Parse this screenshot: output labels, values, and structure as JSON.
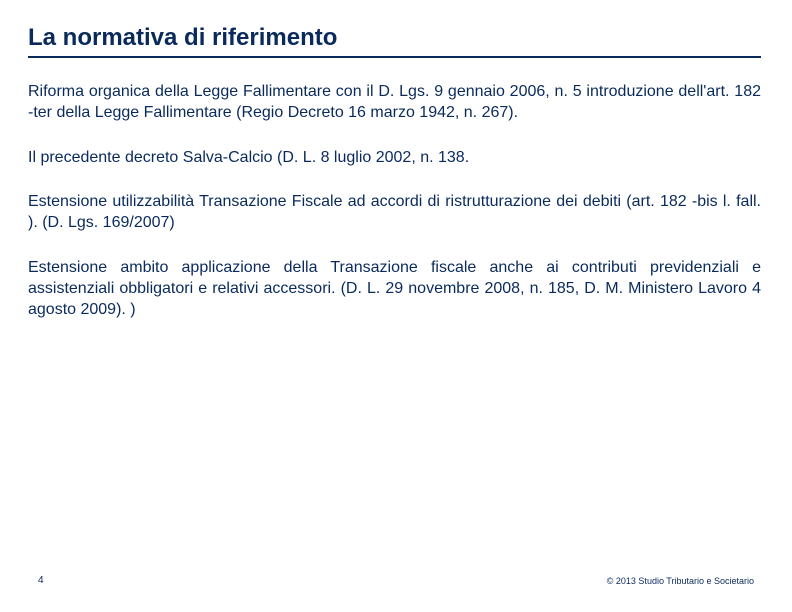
{
  "title": "La normativa di riferimento",
  "paragraphs": [
    "Riforma organica  della Legge Fallimentare con il D. Lgs. 9 gennaio 2006, n. 5 introduzione dell'art. 182 -ter  della Legge Fallimentare (Regio Decreto 16 marzo 1942, n. 267).",
    "Il precedente decreto Salva-Calcio (D. L. 8 luglio 2002, n. 138.",
    "Estensione utilizzabilità Transazione Fiscale ad accordi di ristrutturazione dei debiti (art. 182 -bis l. fall. ). (D. Lgs. 169/2007)",
    "Estensione ambito applicazione della Transazione fiscale anche ai contributi previdenziali e assistenziali obbligatori e relativi accessori. (D. L. 29 novembre 2008, n. 185, D. M. Ministero Lavoro 4 agosto 2009). )"
  ],
  "footer": {
    "page_number": "4",
    "copyright": "© 2013 Studio Tributario e Societario"
  },
  "styling": {
    "title_color": "#0a2a5c",
    "text_color": "#0a2a5c",
    "background_color": "#ffffff",
    "title_fontsize": 24,
    "body_fontsize": 16,
    "footer_fontsize": 10,
    "copyright_fontsize": 9,
    "underline_color": "#0a2a5c",
    "underline_width": 2,
    "slide_width": 792,
    "slide_height": 612
  }
}
